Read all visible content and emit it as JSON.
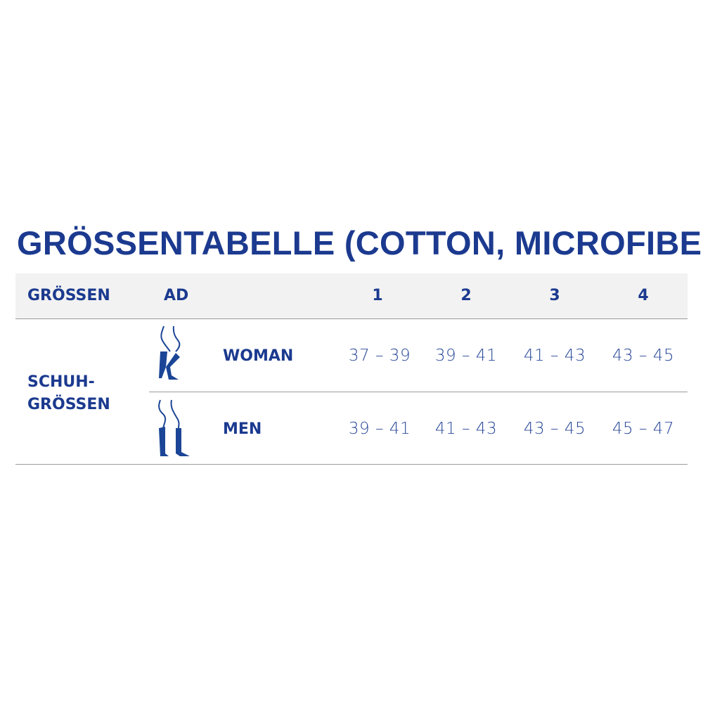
{
  "title": "GRÖSSENTABELLE (COTTON, MICROFIBER)",
  "header": {
    "col1": "GRÖSSEN",
    "col2": "AD",
    "sizes": [
      "1",
      "2",
      "3",
      "4"
    ]
  },
  "row_group_label": [
    "SCHUH-",
    "GRÖSSEN"
  ],
  "rows": [
    {
      "icon": "woman-legs-stockings-icon",
      "label": "WOMAN",
      "values": [
        "37 – 39",
        "39 – 41",
        "41 – 43",
        "43 – 45"
      ]
    },
    {
      "icon": "men-legs-stockings-icon",
      "label": "MEN",
      "values": [
        "39 – 41",
        "41 – 43",
        "43 – 45",
        "45 – 47"
      ]
    }
  ],
  "colors": {
    "brand": "#1b3a8f",
    "header_bg": "#f2f2f2",
    "divider": "#9a9a9a"
  }
}
